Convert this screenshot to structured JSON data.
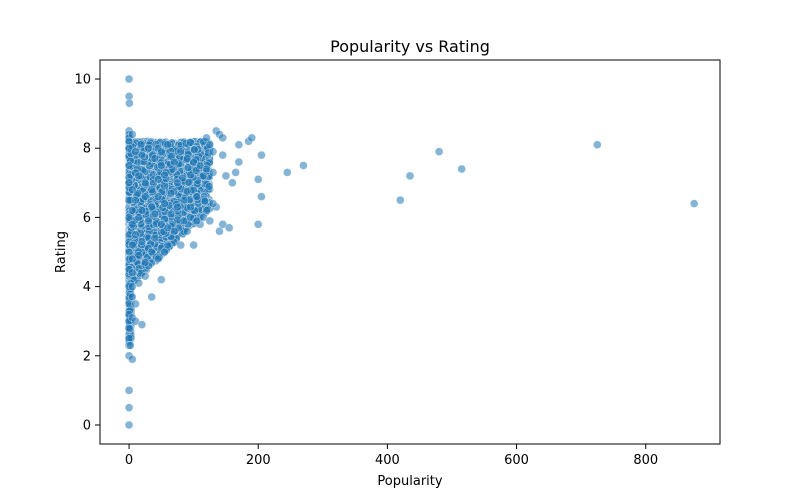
{
  "chart_data": {
    "type": "scatter",
    "title": "Popularity vs Rating",
    "xlabel": "Popularity",
    "ylabel": "Rating",
    "xlim": [
      -45,
      915
    ],
    "ylim": [
      -0.55,
      10.55
    ],
    "xticks": [
      0,
      200,
      400,
      600,
      800
    ],
    "yticks": [
      0,
      2,
      4,
      6,
      8,
      10
    ],
    "grid": false,
    "point_color": "#1f77b4",
    "point_opacity": 0.55,
    "series": [
      {
        "points": [
          [
            0,
            10.0
          ],
          [
            0,
            9.5
          ],
          [
            0.5,
            9.3
          ],
          [
            0,
            8.5
          ],
          [
            0,
            8.4
          ],
          [
            0,
            8.3
          ],
          [
            0,
            8.2
          ],
          [
            0,
            8.0
          ],
          [
            0,
            7.5
          ],
          [
            0,
            7.0
          ],
          [
            0,
            6.5
          ],
          [
            0,
            6.0
          ],
          [
            0,
            5.5
          ],
          [
            0,
            5.0
          ],
          [
            0,
            4.5
          ],
          [
            0,
            4.0
          ],
          [
            0,
            3.5
          ],
          [
            0,
            3.2
          ],
          [
            0,
            3.0
          ],
          [
            0,
            2.8
          ],
          [
            0,
            2.5
          ],
          [
            0,
            2.3
          ],
          [
            0,
            2.0
          ],
          [
            0,
            1.0
          ],
          [
            0,
            0.5
          ],
          [
            0,
            0.0
          ],
          [
            5,
            8.4
          ],
          [
            2,
            2.3
          ],
          [
            5,
            1.9
          ],
          [
            5,
            3.1
          ],
          [
            10,
            3.0
          ],
          [
            20,
            2.9
          ],
          [
            10,
            3.5
          ],
          [
            35,
            3.7
          ],
          [
            15,
            4.1
          ],
          [
            25,
            4.3
          ],
          [
            50,
            4.2
          ],
          [
            30,
            4.6
          ],
          [
            45,
            4.8
          ],
          [
            55,
            5.0
          ],
          [
            60,
            5.2
          ],
          [
            10,
            7.9
          ],
          [
            20,
            7.8
          ],
          [
            30,
            8.0
          ],
          [
            40,
            7.7
          ],
          [
            50,
            7.9
          ],
          [
            60,
            8.1
          ],
          [
            70,
            7.6
          ],
          [
            80,
            7.9
          ],
          [
            90,
            7.7
          ],
          [
            100,
            7.6
          ],
          [
            110,
            7.5
          ],
          [
            120,
            7.4
          ],
          [
            130,
            7.3
          ],
          [
            15,
            7.2
          ],
          [
            25,
            7.0
          ],
          [
            35,
            6.8
          ],
          [
            45,
            7.1
          ],
          [
            55,
            6.9
          ],
          [
            65,
            6.7
          ],
          [
            75,
            7.0
          ],
          [
            85,
            6.5
          ],
          [
            95,
            6.3
          ],
          [
            105,
            6.6
          ],
          [
            115,
            6.0
          ],
          [
            125,
            5.9
          ],
          [
            135,
            6.3
          ],
          [
            10,
            6.5
          ],
          [
            20,
            6.2
          ],
          [
            30,
            5.9
          ],
          [
            40,
            6.1
          ],
          [
            50,
            5.8
          ],
          [
            60,
            5.7
          ],
          [
            70,
            5.6
          ],
          [
            80,
            5.2
          ],
          [
            90,
            5.6
          ],
          [
            100,
            5.2
          ],
          [
            110,
            5.8
          ],
          [
            140,
            5.6
          ],
          [
            145,
            5.8
          ],
          [
            155,
            5.7
          ],
          [
            10,
            5.5
          ],
          [
            20,
            5.3
          ],
          [
            30,
            5.1
          ],
          [
            40,
            5.4
          ],
          [
            15,
            4.9
          ],
          [
            25,
            4.7
          ],
          [
            35,
            5.0
          ],
          [
            5,
            6.8
          ],
          [
            5,
            6.2
          ],
          [
            5,
            5.8
          ],
          [
            5,
            5.2
          ],
          [
            5,
            4.8
          ],
          [
            5,
            4.4
          ],
          [
            5,
            4.0
          ],
          [
            5,
            3.7
          ],
          [
            15,
            6.0
          ],
          [
            25,
            6.6
          ],
          [
            35,
            6.3
          ],
          [
            45,
            6.6
          ],
          [
            55,
            6.4
          ],
          [
            65,
            6.1
          ],
          [
            75,
            6.3
          ],
          [
            85,
            5.9
          ],
          [
            95,
            6.0
          ],
          [
            105,
            5.9
          ],
          [
            120,
            6.2
          ],
          [
            130,
            6.4
          ],
          [
            130,
            7.9
          ],
          [
            135,
            8.5
          ],
          [
            140,
            8.4
          ],
          [
            145,
            8.3
          ],
          [
            120,
            8.3
          ],
          [
            125,
            8.1
          ],
          [
            145,
            7.8
          ],
          [
            150,
            7.2
          ],
          [
            160,
            7.0
          ],
          [
            165,
            7.3
          ],
          [
            170,
            7.6
          ],
          [
            170,
            8.1
          ],
          [
            185,
            8.2
          ],
          [
            190,
            8.3
          ],
          [
            200,
            7.1
          ],
          [
            200,
            5.8
          ],
          [
            205,
            7.8
          ],
          [
            205,
            6.6
          ],
          [
            245,
            7.3
          ],
          [
            270,
            7.5
          ],
          [
            420,
            6.5
          ],
          [
            435,
            7.2
          ],
          [
            480,
            7.9
          ],
          [
            515,
            7.4
          ],
          [
            725,
            8.1
          ],
          [
            875,
            6.4
          ]
        ]
      }
    ]
  }
}
